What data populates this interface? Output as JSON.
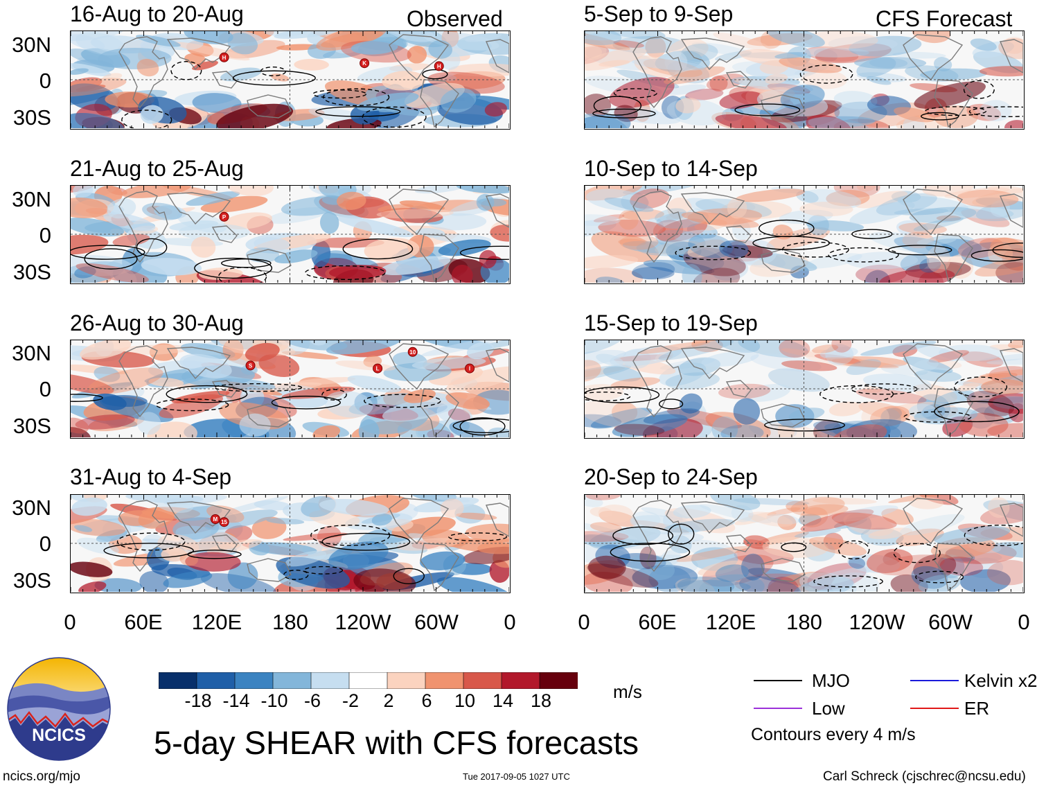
{
  "figure_title": "5-day SHEAR with CFS forecasts",
  "observed_label": "Observed",
  "forecast_label": "CFS Forecast",
  "observed_panels": [
    {
      "period": "16-Aug to 20-Aug"
    },
    {
      "period": "21-Aug to 25-Aug"
    },
    {
      "period": "26-Aug to 30-Aug"
    },
    {
      "period": "31-Aug to 4-Sep"
    }
  ],
  "forecast_panels": [
    {
      "period": "5-Sep to 9-Sep"
    },
    {
      "period": "10-Sep to 14-Sep"
    },
    {
      "period": "15-Sep to 19-Sep"
    },
    {
      "period": "20-Sep to 24-Sep"
    }
  ],
  "lat_labels": [
    "30N",
    "0",
    "30S"
  ],
  "lon_labels": [
    "0",
    "60E",
    "120E",
    "180",
    "120W",
    "60W",
    "0"
  ],
  "storm_markers": [
    {
      "panel": 0,
      "label": "H"
    },
    {
      "panel": 0,
      "label": "K"
    },
    {
      "panel": 0,
      "label": "H"
    },
    {
      "panel": 1,
      "label": "P"
    },
    {
      "panel": 2,
      "label": "S"
    },
    {
      "panel": 2,
      "label": "L"
    },
    {
      "panel": 2,
      "label": "10"
    },
    {
      "panel": 2,
      "label": "I"
    },
    {
      "panel": 3,
      "label": "M"
    },
    {
      "panel": 3,
      "label": "15"
    }
  ],
  "colorbar": {
    "unit": "m/s",
    "ticks": [
      "-18",
      "-14",
      "-10",
      "-6",
      "-2",
      "2",
      "6",
      "10",
      "14",
      "18"
    ],
    "colors": [
      "#08306b",
      "#1f5fa8",
      "#3b83c1",
      "#83b6da",
      "#c6def0",
      "#ffffff",
      "#fbd3bf",
      "#f0936f",
      "#d8584a",
      "#b2182b",
      "#67000d"
    ]
  },
  "legend": {
    "mjo": "MJO",
    "kelvin": "Kelvin x2",
    "low": "Low",
    "er": "ER",
    "contour_note": "Contours every 4 m/s",
    "colors": {
      "mjo": "#000000",
      "kelvin": "#1a1adb",
      "low": "#9b30d9",
      "er": "#e01818"
    }
  },
  "logo_text": "NCICS",
  "footer": {
    "left": "ncics.org/mjo",
    "center": "Tue 2017-09-05 1027 UTC",
    "right": "Carl Schreck (cjschrec@ncsu.edu)"
  }
}
